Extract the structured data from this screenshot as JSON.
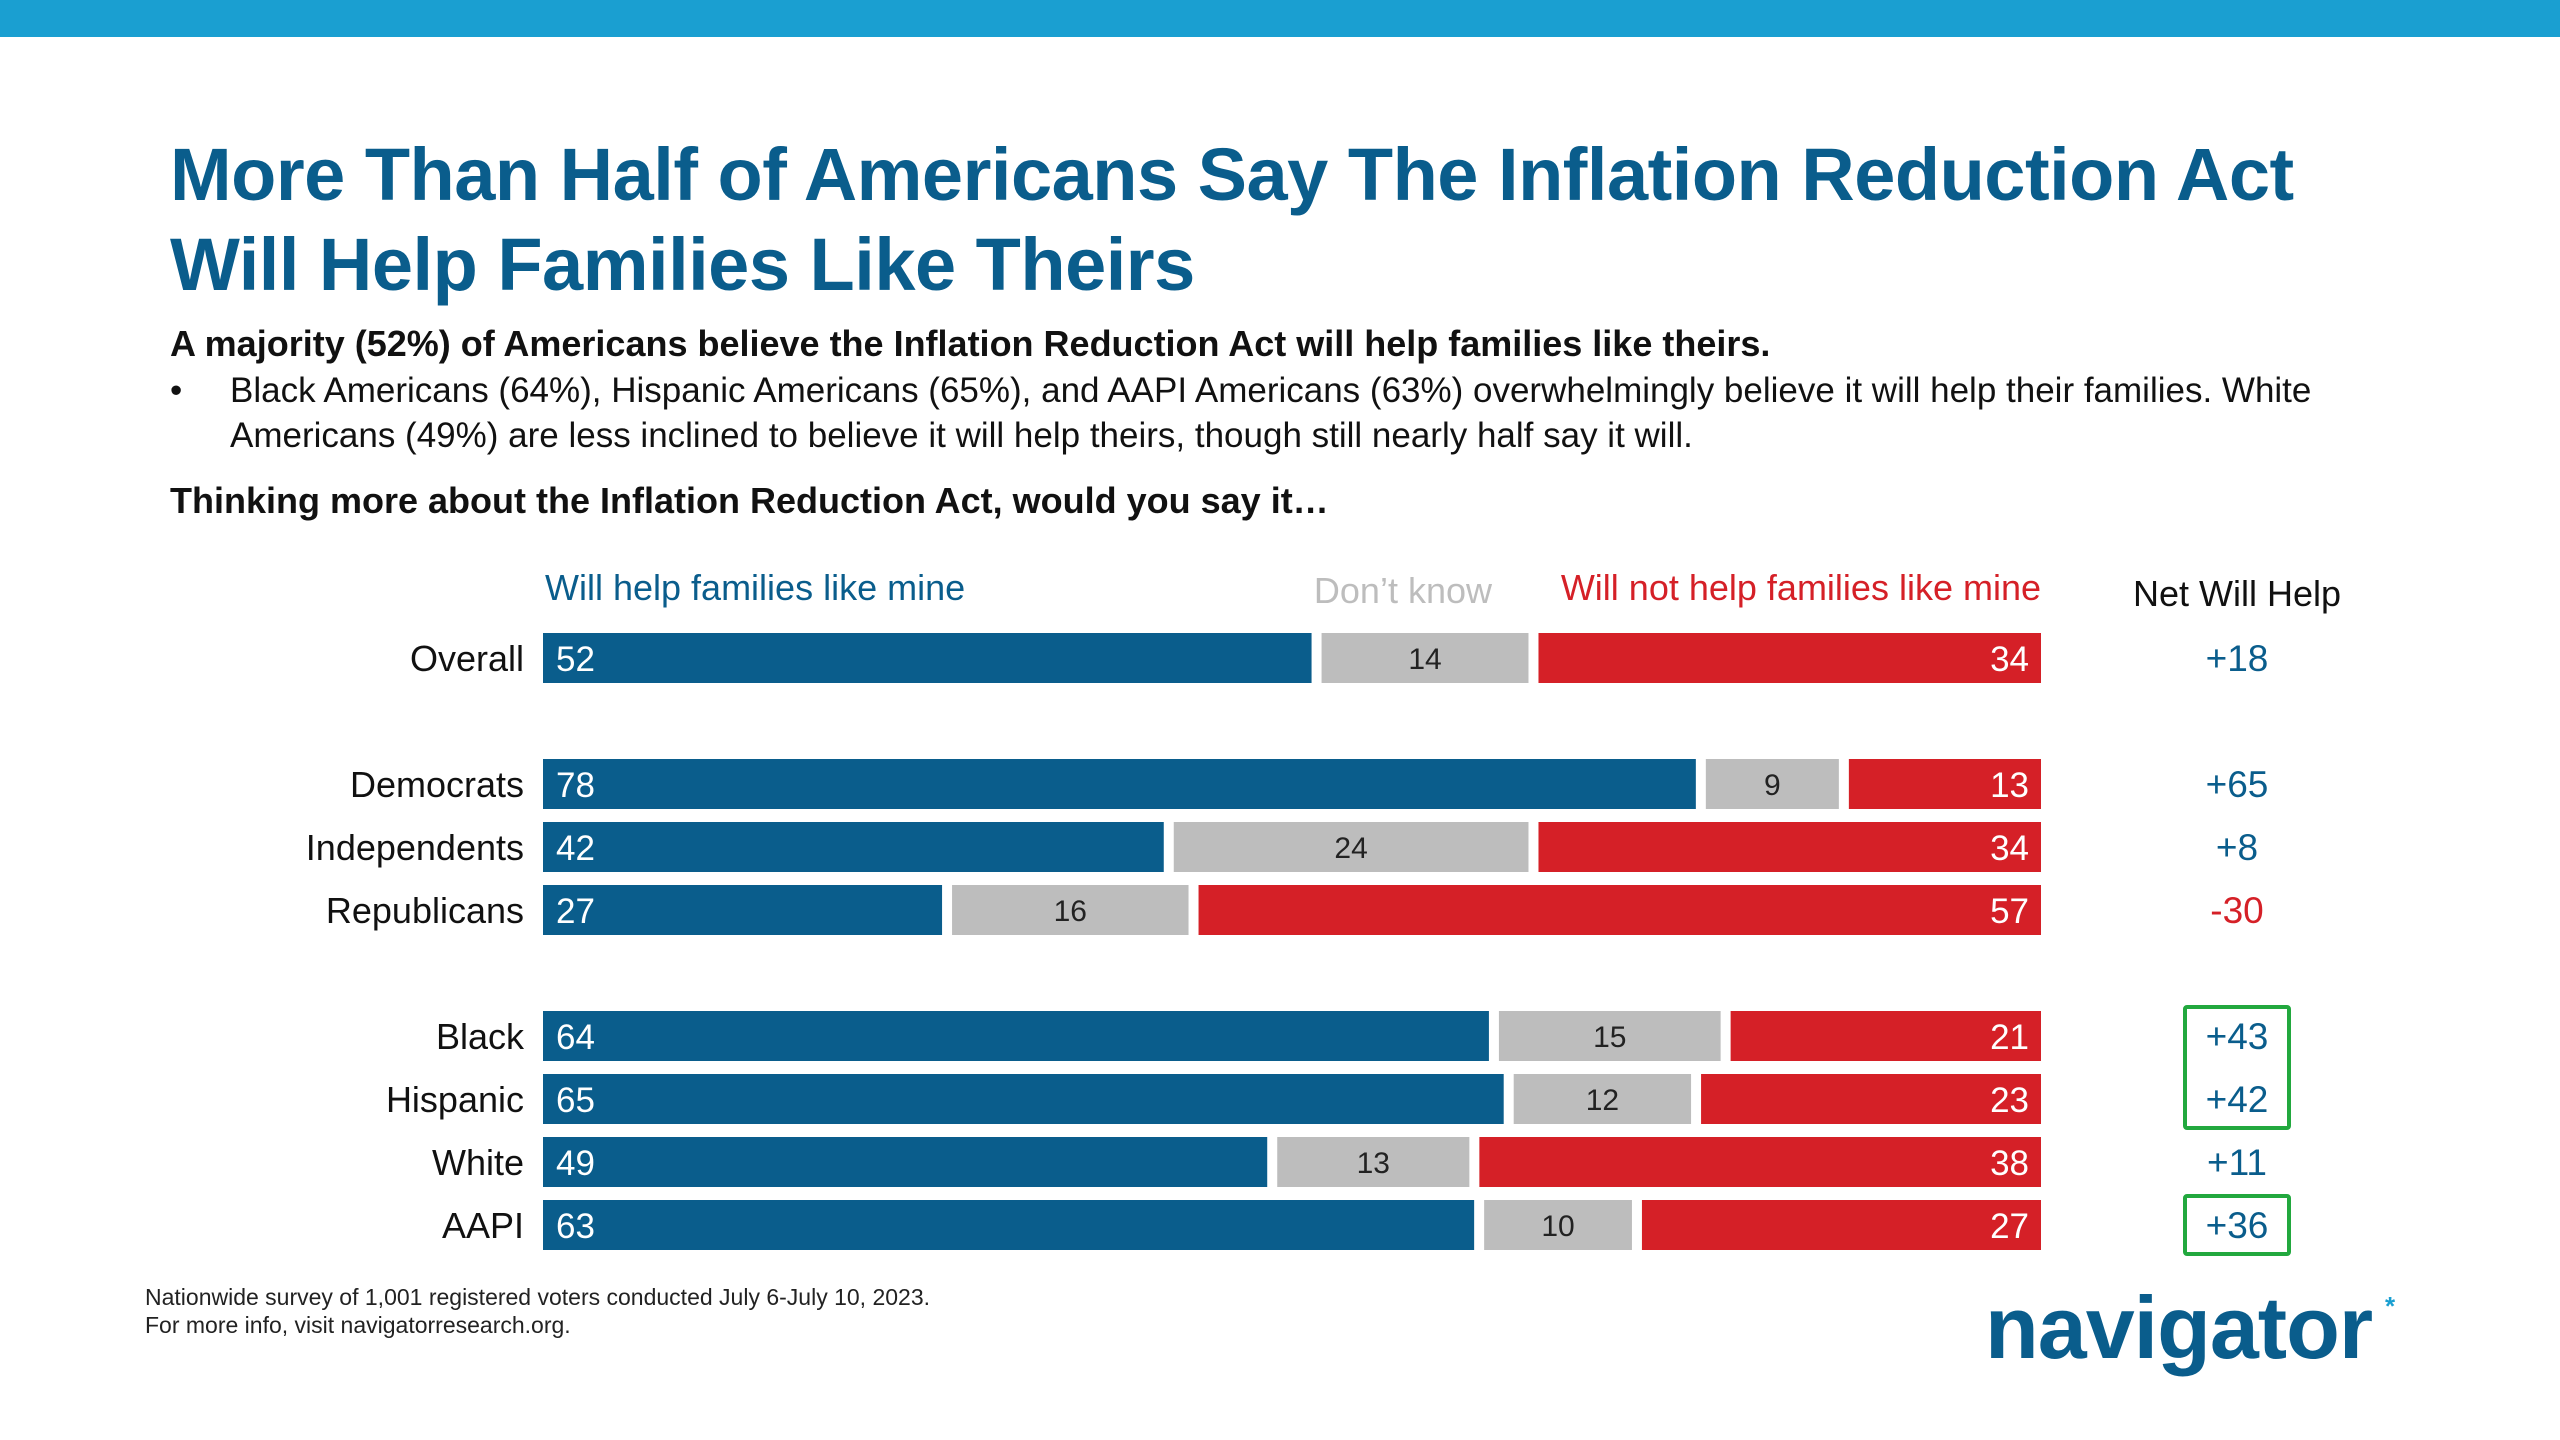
{
  "header": {
    "title": "More Than Half of Americans Say The Inflation Reduction Act Will Help Families Like Theirs",
    "subtitle": "A majority (52%) of Americans believe the Inflation Reduction Act will help families like theirs.",
    "bullet_marker": "•",
    "bullet_text": "Black Americans (64%), Hispanic Americans (65%), and AAPI Americans (63%) overwhelmingly believe it will help their families. White Americans (49%) are less inclined to believe it will help theirs, though still nearly half say it will.",
    "question": "Thinking more about the Inflation Reduction Act, would you say it…"
  },
  "chart_data": {
    "type": "bar",
    "orientation": "horizontal",
    "stacked": true,
    "categories": [
      "Overall",
      "Democrats",
      "Independents",
      "Republicans",
      "Black",
      "Hispanic",
      "White",
      "AAPI"
    ],
    "groups": [
      [
        "Overall"
      ],
      [
        "Democrats",
        "Independents",
        "Republicans"
      ],
      [
        "Black",
        "Hispanic",
        "White",
        "AAPI"
      ]
    ],
    "series": [
      {
        "name": "Will help families like mine",
        "color": "#0a5d8c",
        "values": [
          52,
          78,
          42,
          27,
          64,
          65,
          49,
          63
        ]
      },
      {
        "name": "Don’t know",
        "color": "#bdbdbd",
        "values": [
          14,
          9,
          24,
          16,
          15,
          12,
          13,
          10
        ]
      },
      {
        "name": "Will not help families like mine",
        "color": "#d52027",
        "values": [
          34,
          13,
          34,
          57,
          21,
          23,
          38,
          27
        ]
      }
    ],
    "net_header": "Net Will Help",
    "net": [
      "+18",
      "+65",
      "+8",
      "-30",
      "+43",
      "+42",
      "+11",
      "+36"
    ],
    "net_highlighted": [
      "Black",
      "Hispanic",
      "AAPI"
    ],
    "net_colors": {
      "positive": "#0a5d8c",
      "negative": "#d52027"
    },
    "label_colors": {
      "Will help families like mine": "#0a5d8c",
      "Don’t know": "#bdbdbd",
      "Will not help families like mine": "#d52027"
    },
    "highlight_color": "#22a83e"
  },
  "footer": {
    "note_line1": "Nationwide survey of 1,001 registered voters conducted July 6-July 10, 2023.",
    "note_line2": "For more info, visit navigatorresearch.org.",
    "logo_text": "navigator",
    "logo_mark": "*"
  }
}
